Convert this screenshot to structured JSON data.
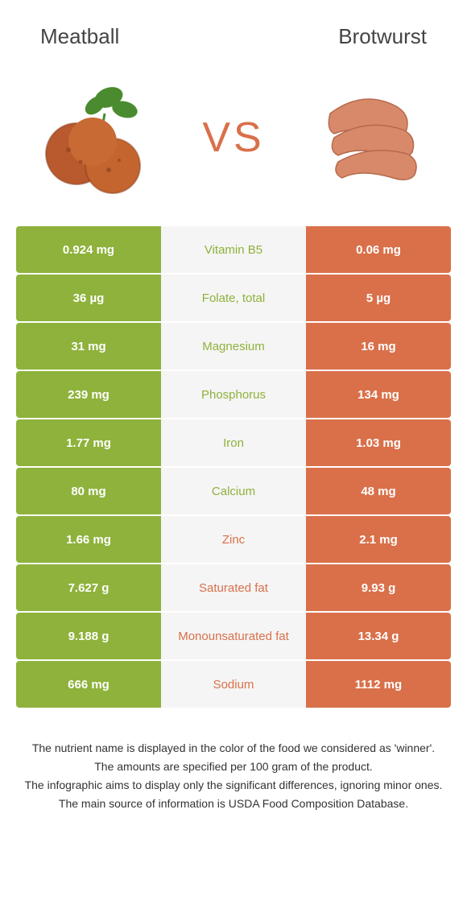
{
  "left_food": {
    "title": "Meatball"
  },
  "right_food": {
    "title": "Brotwurst"
  },
  "vs_label": "VS",
  "colors": {
    "left": "#8eb23b",
    "right": "#d9704a",
    "mid_bg": "#f5f5f5"
  },
  "rows": [
    {
      "nutrient": "Vitamin B5",
      "left": "0.924 mg",
      "right": "0.06 mg",
      "winner": "left"
    },
    {
      "nutrient": "Folate, total",
      "left": "36 µg",
      "right": "5 µg",
      "winner": "left"
    },
    {
      "nutrient": "Magnesium",
      "left": "31 mg",
      "right": "16 mg",
      "winner": "left"
    },
    {
      "nutrient": "Phosphorus",
      "left": "239 mg",
      "right": "134 mg",
      "winner": "left"
    },
    {
      "nutrient": "Iron",
      "left": "1.77 mg",
      "right": "1.03 mg",
      "winner": "left"
    },
    {
      "nutrient": "Calcium",
      "left": "80 mg",
      "right": "48 mg",
      "winner": "left"
    },
    {
      "nutrient": "Zinc",
      "left": "1.66 mg",
      "right": "2.1 mg",
      "winner": "right"
    },
    {
      "nutrient": "Saturated fat",
      "left": "7.627 g",
      "right": "9.93 g",
      "winner": "right"
    },
    {
      "nutrient": "Monounsaturated fat",
      "left": "9.188 g",
      "right": "13.34 g",
      "winner": "right"
    },
    {
      "nutrient": "Sodium",
      "left": "666 mg",
      "right": "1112 mg",
      "winner": "right"
    }
  ],
  "footer": {
    "line1": "The nutrient name is displayed in the color of the food we considered as 'winner'.",
    "line2": "The amounts are specified per 100 gram of the product.",
    "line3": "The infographic aims to display only the significant differences, ignoring minor ones.",
    "line4": "The main source of information is USDA Food Composition Database."
  }
}
